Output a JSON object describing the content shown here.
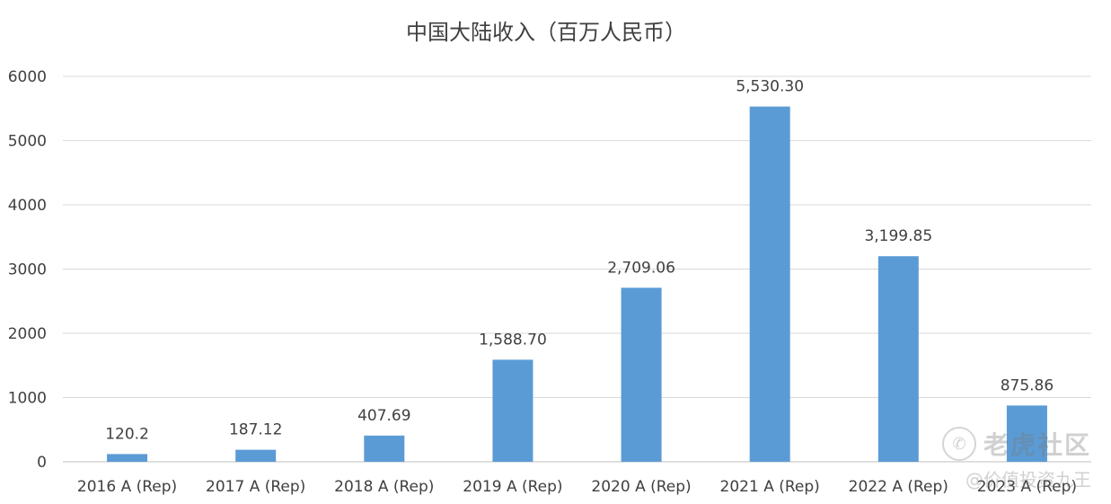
{
  "chart_data": {
    "type": "bar",
    "title": "中国大陆收入（百万人民币）",
    "categories": [
      "2016 A (Rep)",
      "2017 A (Rep)",
      "2018 A (Rep)",
      "2019 A (Rep)",
      "2020 A (Rep)",
      "2021 A (Rep)",
      "2022 A (Rep)",
      "2023 A (Rep)"
    ],
    "values": [
      120.2,
      187.12,
      407.69,
      1588.7,
      2709.06,
      5530.3,
      3199.85,
      875.86
    ],
    "value_labels": [
      "120.2",
      "187.12",
      "407.69",
      "1,588.70",
      "2,709.06",
      "5,530.30",
      "3,199.85",
      "875.86"
    ],
    "ylim": [
      0,
      6000
    ],
    "yticks": [
      "0",
      "1000",
      "2000",
      "3000",
      "4000",
      "5000",
      "6000"
    ],
    "grid": true,
    "bar_color": "#5b9bd5"
  },
  "watermark": {
    "icon": "tiger-logo-icon",
    "name": "老虎社区",
    "handle": "@价值投资九王"
  }
}
